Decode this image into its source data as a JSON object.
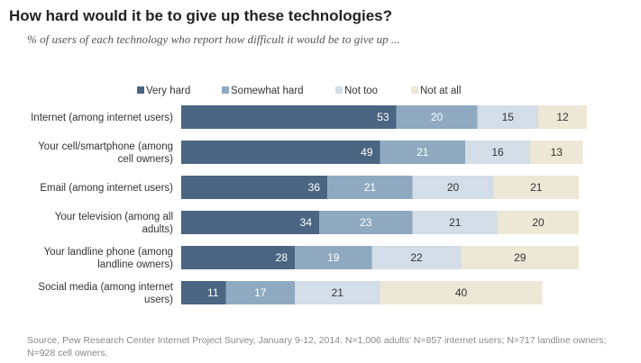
{
  "title": "How hard would it be to give up these technologies?",
  "subtitle": "% of users of each technology who report how difficult it would be to give up ...",
  "source": "Source, Pew Research Center Internet Project Survey, January 9-12, 2014. N=1,006 adults' N=857 internet users; N=717 landline owners; N=928 cell owners.",
  "chart_data": {
    "type": "bar",
    "orientation": "horizontal",
    "stacked": true,
    "categories": [
      [
        "Internet (among internet users)"
      ],
      [
        "Your cell/smartphone (among",
        "cell owners)"
      ],
      [
        "Email (among internet users)"
      ],
      [
        "Your television (among all",
        "adults)"
      ],
      [
        "Your landline phone (among",
        "landline owners)"
      ],
      [
        "Social media (among internet",
        "users)"
      ]
    ],
    "series": [
      {
        "name": "Very hard",
        "color": "#4a6682",
        "label_color": "#ffffff",
        "values": [
          53,
          49,
          36,
          34,
          28,
          11
        ]
      },
      {
        "name": "Somewhat hard",
        "color": "#8fa9c1",
        "label_color": "#ffffff",
        "values": [
          20,
          21,
          21,
          23,
          19,
          17
        ]
      },
      {
        "name": "Not too",
        "color": "#d3dde7",
        "label_color": "#333333",
        "values": [
          15,
          16,
          20,
          21,
          22,
          21
        ]
      },
      {
        "name": "Not at all",
        "color": "#ece8d5",
        "label_color": "#333333",
        "values": [
          12,
          13,
          21,
          20,
          29,
          40
        ]
      }
    ],
    "legend": "top",
    "grid": false
  }
}
